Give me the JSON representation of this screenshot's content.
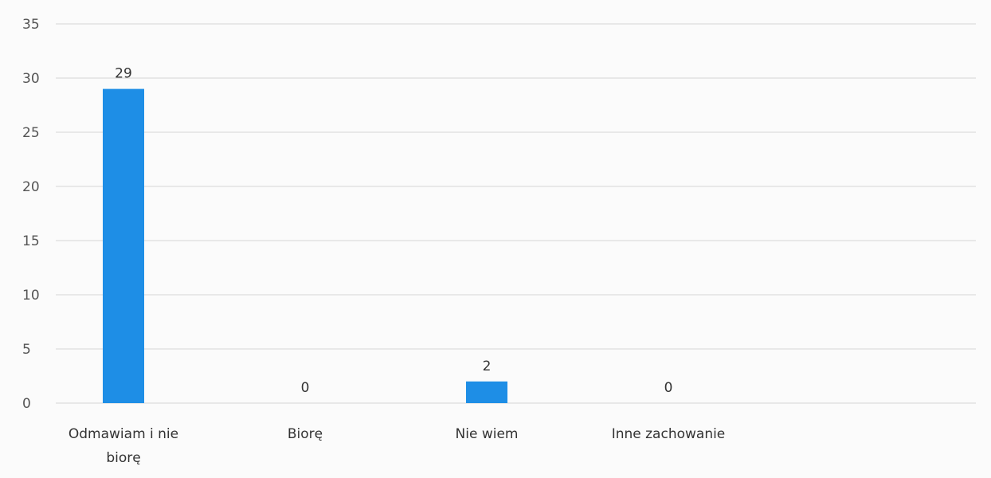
{
  "chart_data": {
    "type": "bar",
    "categories": [
      [
        "Odmawiam i nie",
        "biorę"
      ],
      [
        "Biorę"
      ],
      [
        "Nie wiem"
      ],
      [
        "Inne zachowanie"
      ]
    ],
    "values": [
      29,
      0,
      2,
      0
    ],
    "data_labels": [
      "29",
      "0",
      "2",
      "0"
    ],
    "y_ticks": [
      "0",
      "5",
      "10",
      "15",
      "20",
      "25",
      "30",
      "35"
    ],
    "ylim": [
      0,
      35
    ],
    "grid": true,
    "legend": "none",
    "colors": {
      "bar": "#1e8ee6",
      "grid": "#e2e2e2"
    }
  }
}
